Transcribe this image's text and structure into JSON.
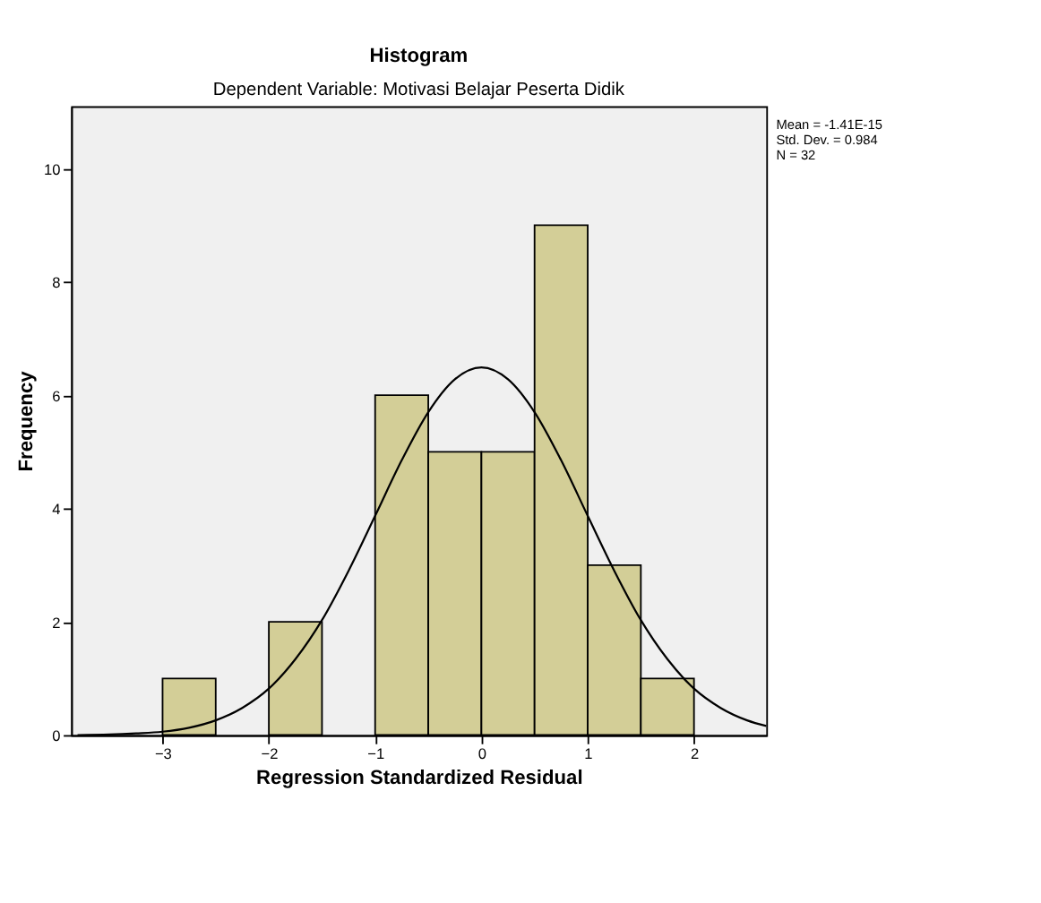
{
  "chart_data": {
    "type": "histogram",
    "title": "Histogram",
    "subtitle": "Dependent Variable: Motivasi Belajar Peserta Didik",
    "xlabel": "Regression Standardized Residual",
    "ylabel": "Frequency",
    "bins": [
      -3,
      -2.5,
      -2,
      -1.5,
      -1,
      -0.5,
      0,
      0.5,
      1,
      1.5,
      2
    ],
    "values": [
      1,
      0,
      2,
      0,
      6,
      5,
      5,
      9,
      3,
      1
    ],
    "color": "#d3ce97",
    "series": [
      {
        "type": "line",
        "color": "#000000",
        "x": [
          -3.8,
          -3.5,
          -3.25,
          -3,
          -2.75,
          -2.5,
          -2.25,
          -2,
          -1.75,
          -1.5,
          -1.25,
          -1,
          -0.75,
          -0.5,
          -0.25,
          0,
          0.25,
          0.5,
          0.75,
          1,
          1.25,
          1.5,
          1.75,
          2,
          2.25,
          2.5,
          2.68
        ],
        "values": [
          0.0,
          0.01,
          0.03,
          0.06,
          0.13,
          0.26,
          0.48,
          0.82,
          1.34,
          2.03,
          2.9,
          3.87,
          4.85,
          5.7,
          6.28,
          6.49,
          6.28,
          5.7,
          4.85,
          3.87,
          2.9,
          2.03,
          1.34,
          0.82,
          0.48,
          0.26,
          0.16
        ]
      }
    ],
    "xlim": [
      -3.86,
      2.68
    ],
    "ylim": [
      0,
      11.1
    ],
    "xticks": [
      -3,
      -2,
      -1,
      0,
      1,
      2
    ],
    "yticks": [
      0,
      2,
      4,
      6,
      8,
      10
    ],
    "grid": false,
    "annotations": [
      "Mean = -1.41E-15",
      "Std. Dev. = 0.984",
      "N = 32"
    ]
  }
}
